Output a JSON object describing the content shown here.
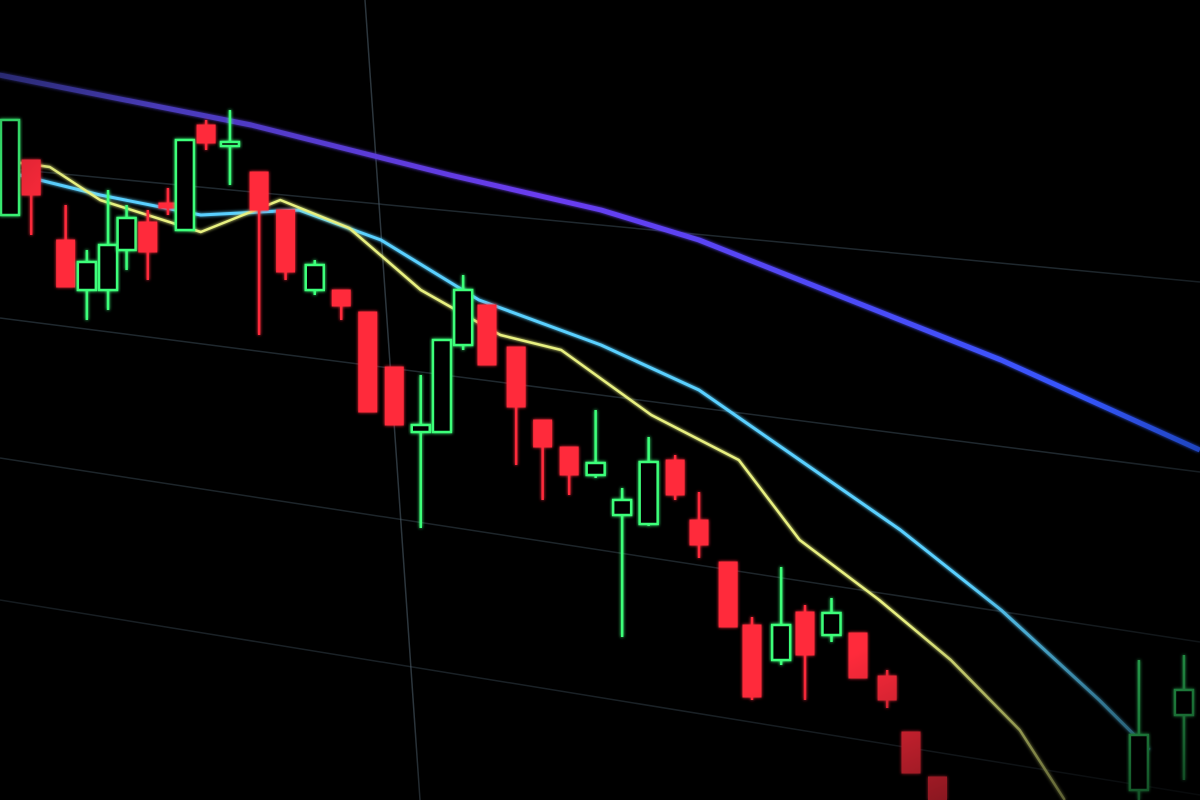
{
  "chart_data": {
    "type": "candlestick",
    "title": "",
    "xlabel": "",
    "ylabel": "",
    "grid": true,
    "legend": "none",
    "colors": {
      "up": "#3dff7a",
      "down": "#ff2a3a",
      "background": "#000000",
      "grid": "#3a4a55",
      "ma_slow": "#4a46f0",
      "ma_mid": "#5ad0ff",
      "ma_fast": "#e8f080"
    },
    "candle_fields": [
      "t",
      "open",
      "high",
      "low",
      "close"
    ],
    "candles": [
      [
        0,
        58.5,
        68,
        58.5,
        68
      ],
      [
        0.8,
        64,
        64,
        56.5,
        60.5
      ],
      [
        2.1,
        56,
        59.5,
        51.3,
        51.3
      ],
      [
        2.9,
        51,
        55,
        48,
        53.8
      ],
      [
        3.7,
        51,
        61,
        49,
        55.5
      ],
      [
        4.4,
        55,
        59.5,
        53,
        58.2
      ],
      [
        5.2,
        57.8,
        59,
        52,
        54.8
      ],
      [
        5.96,
        59.7,
        61.2,
        58.5,
        59.2
      ],
      [
        6.6,
        57,
        66,
        57,
        66
      ],
      [
        7.4,
        67.5,
        68,
        65,
        65.7
      ],
      [
        8.3,
        65.4,
        69,
        61.5,
        65.8
      ],
      [
        9.4,
        62.8,
        62.8,
        46.5,
        59
      ],
      [
        10.4,
        59,
        59,
        52,
        52.8
      ],
      [
        11.5,
        51,
        54,
        50.5,
        53.5
      ],
      [
        12.5,
        51,
        51,
        48,
        49.4
      ],
      [
        13.5,
        48.8,
        48.8,
        38.8,
        38.8
      ],
      [
        14.5,
        43.3,
        43.3,
        37.5,
        37.5
      ],
      [
        15.5,
        36.8,
        42.5,
        27.2,
        37.5
      ],
      [
        16.3,
        36.8,
        46,
        36.8,
        46
      ],
      [
        17.1,
        45.5,
        52.5,
        45,
        51
      ],
      [
        18.0,
        49.5,
        49.5,
        43.5,
        43.5
      ],
      [
        19.1,
        45.3,
        45.3,
        33.5,
        39.3
      ],
      [
        20.1,
        38,
        38,
        30,
        35.3
      ],
      [
        21.1,
        35.3,
        35.3,
        30.5,
        32.5
      ],
      [
        22.1,
        32.5,
        39,
        32.2,
        33.7
      ],
      [
        23.1,
        28.5,
        31.2,
        16.3,
        30
      ],
      [
        24.1,
        27.6,
        36.3,
        27.4,
        33.8
      ],
      [
        25.1,
        34,
        34.5,
        30,
        30.5
      ],
      [
        26.0,
        28,
        30.8,
        24.2,
        25.5
      ],
      [
        27.1,
        23.8,
        23.8,
        17.3,
        17.3
      ],
      [
        28.0,
        17.5,
        18.3,
        10,
        10.3
      ],
      [
        29.1,
        14,
        23.3,
        13.5,
        17.5
      ],
      [
        30.0,
        18.8,
        19.5,
        10,
        14.5
      ],
      [
        31.0,
        16.5,
        20.2,
        15.8,
        18.7
      ],
      [
        32.0,
        16.7,
        16.7,
        12.2,
        12.2
      ],
      [
        33.1,
        12.4,
        13,
        9.2,
        10
      ],
      [
        34.0,
        6.8,
        6.8,
        2.7,
        2.7
      ],
      [
        35.0,
        2.3,
        2.3,
        0,
        0
      ],
      [
        42.6,
        1,
        14,
        0,
        6.5
      ],
      [
        44.3,
        8.5,
        14.5,
        2,
        11
      ]
    ],
    "moving_averages": [
      {
        "key": "ma_slow",
        "points": [
          [
            -0.4,
            72.5
          ],
          [
            9.1,
            67.5
          ],
          [
            16.6,
            62.5
          ],
          [
            22.3,
            59
          ],
          [
            26,
            56
          ],
          [
            31.7,
            50
          ],
          [
            37.4,
            44
          ],
          [
            44.9,
            35
          ]
        ]
      },
      {
        "key": "ma_mid",
        "points": [
          [
            -0.4,
            63
          ],
          [
            3.4,
            60.5
          ],
          [
            7.2,
            58.5
          ],
          [
            10.9,
            59
          ],
          [
            14,
            56
          ],
          [
            17.7,
            50
          ],
          [
            22.3,
            45.5
          ],
          [
            26,
            41
          ],
          [
            29.8,
            34
          ],
          [
            33.6,
            27
          ],
          [
            37.4,
            19
          ],
          [
            41.1,
            10
          ],
          [
            43,
            5
          ]
        ]
      },
      {
        "key": "ma_fast",
        "points": [
          [
            -0.4,
            64
          ],
          [
            1.5,
            63.3
          ],
          [
            3.4,
            60
          ],
          [
            7.2,
            56.8
          ],
          [
            10.2,
            60
          ],
          [
            12.8,
            57.2
          ],
          [
            15.5,
            51
          ],
          [
            18.5,
            46.5
          ],
          [
            20.8,
            45
          ],
          [
            24.2,
            38.5
          ],
          [
            27.5,
            34
          ],
          [
            29.8,
            26
          ],
          [
            32.8,
            20
          ],
          [
            35.5,
            14
          ],
          [
            38.1,
            7
          ],
          [
            39.8,
            0
          ]
        ]
      }
    ]
  }
}
